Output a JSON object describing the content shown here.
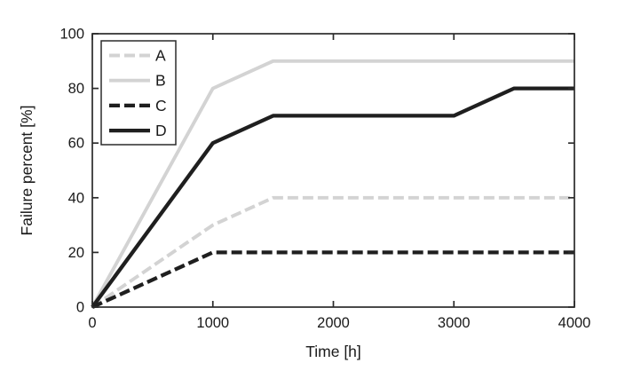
{
  "page": {
    "background": "#ffffff"
  },
  "chart_data": {
    "type": "line",
    "title": "",
    "xlabel": "Time [h]",
    "ylabel": "Failure percent [%]",
    "xlim": [
      0,
      4000
    ],
    "ylim": [
      0,
      100
    ],
    "xticks": [
      0,
      1000,
      2000,
      3000,
      4000
    ],
    "yticks": [
      0,
      20,
      40,
      60,
      80,
      100
    ],
    "grid": false,
    "axis_color": "#2b2b2b",
    "text_color": "#1a1a1a",
    "legend": {
      "position": "top-left",
      "entries": [
        "A",
        "B",
        "C",
        "D"
      ]
    },
    "series": [
      {
        "name": "A",
        "color": "#d3d3d3",
        "dashed": true,
        "width": 3.9,
        "points": [
          [
            0,
            0
          ],
          [
            1000,
            30
          ],
          [
            1500,
            40
          ],
          [
            4000,
            40
          ]
        ]
      },
      {
        "name": "B",
        "color": "#d3d3d3",
        "dashed": false,
        "width": 3.9,
        "points": [
          [
            0,
            0
          ],
          [
            1000,
            80
          ],
          [
            1500,
            90
          ],
          [
            4000,
            90
          ]
        ]
      },
      {
        "name": "C",
        "color": "#1f1f1f",
        "dashed": true,
        "width": 4.3,
        "points": [
          [
            0,
            0
          ],
          [
            1000,
            20
          ],
          [
            4000,
            20
          ]
        ]
      },
      {
        "name": "D",
        "color": "#1f1f1f",
        "dashed": false,
        "width": 4.3,
        "points": [
          [
            0,
            0
          ],
          [
            1000,
            60
          ],
          [
            1500,
            70
          ],
          [
            3000,
            70
          ],
          [
            3500,
            80
          ],
          [
            4000,
            80
          ]
        ]
      }
    ]
  }
}
